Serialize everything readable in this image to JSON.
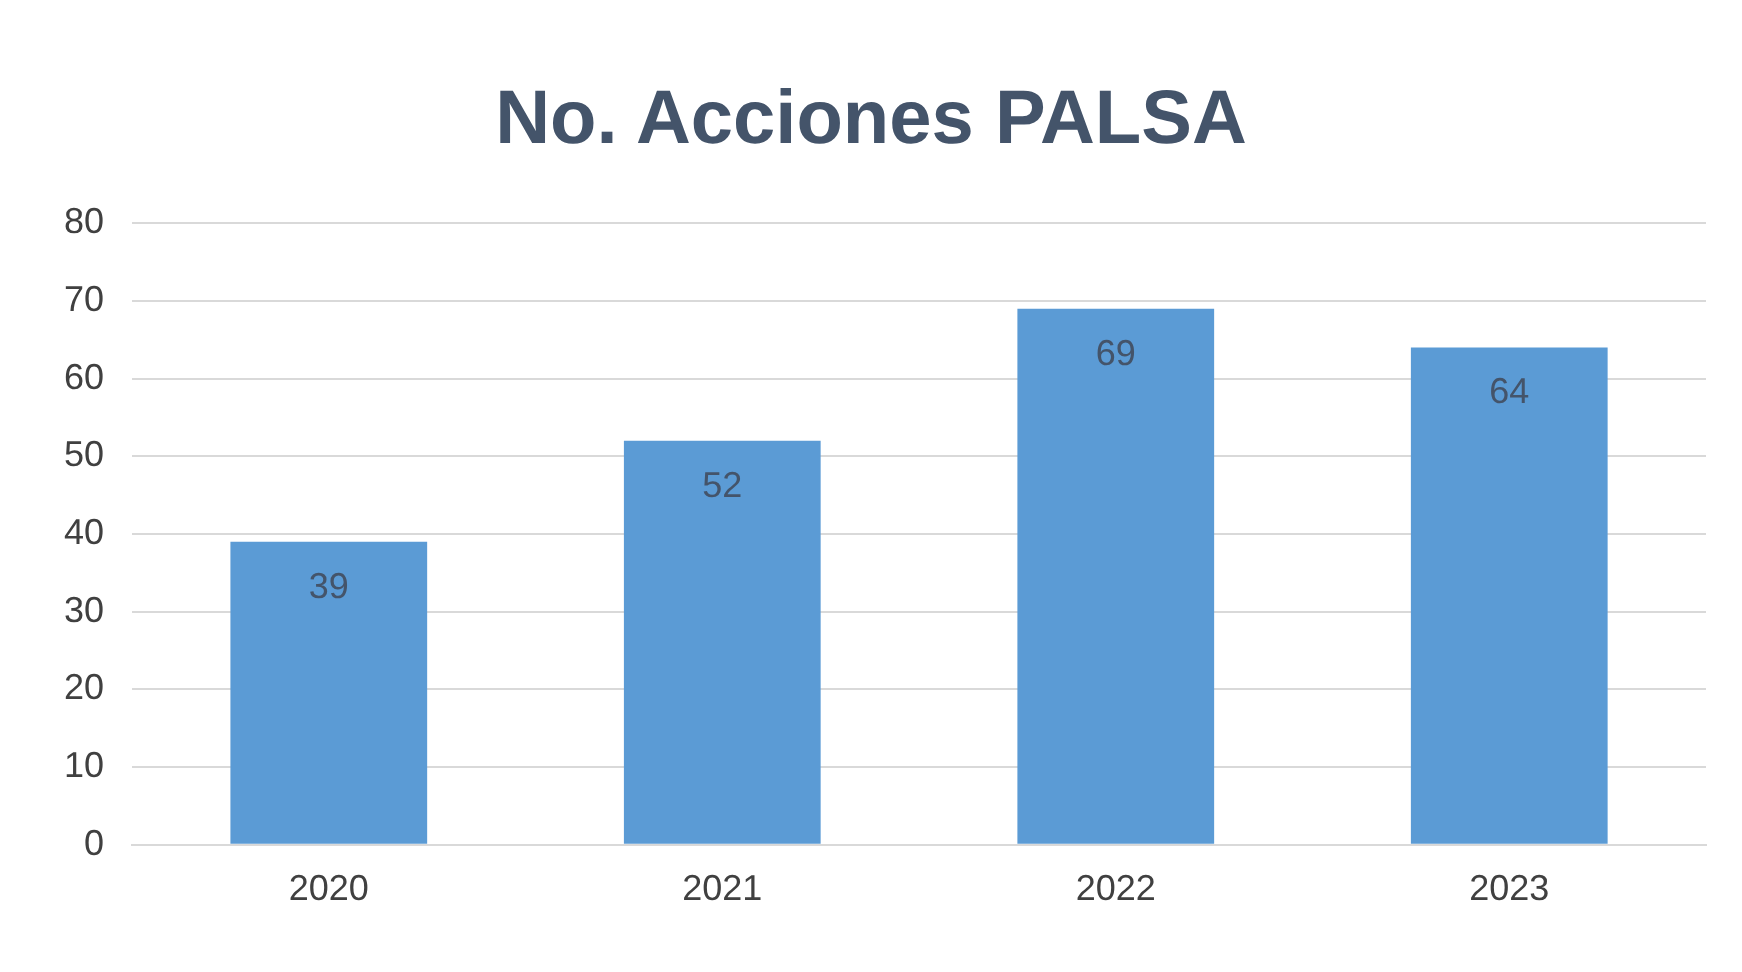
{
  "chart_data": {
    "type": "bar",
    "title": "No. Acciones PALSA",
    "categories": [
      "2020",
      "2021",
      "2022",
      "2023"
    ],
    "values": [
      39,
      52,
      69,
      64
    ],
    "color": "#5b9bd5",
    "ylim": [
      0,
      80
    ],
    "yticks": [
      0,
      10,
      20,
      30,
      40,
      50,
      60,
      70,
      80
    ],
    "grid": "y",
    "data_labels": true,
    "legend": false
  }
}
